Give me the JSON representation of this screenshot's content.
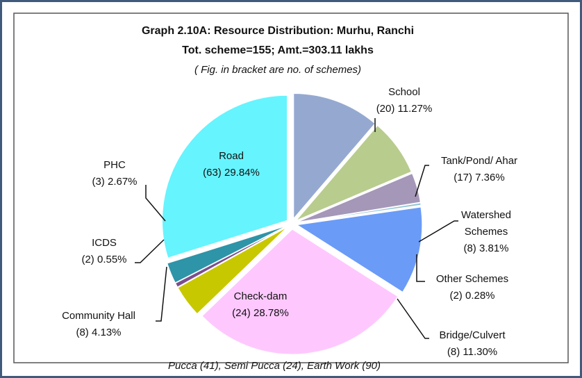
{
  "chart_data": {
    "type": "pie",
    "title": "Graph 2.10A: Resource Distribution: Murhu, Ranchi",
    "subtitle": "Tot. scheme=155; Amt.=303.11 lakhs",
    "note": "( Fig. in bracket are no. of schemes)",
    "footnote": "Pucca (41), Semi Pucca (24), Earth Work (90)",
    "categories": [
      "School",
      "Tank/Pond/ Ahar",
      "Watershed Schemes",
      "Other Schemes",
      "Bridge/Culvert",
      "Check-dam",
      "Community Hall",
      "ICDS",
      "PHC",
      "Road"
    ],
    "values": [
      11.27,
      7.36,
      3.81,
      0.28,
      11.3,
      28.78,
      4.13,
      0.55,
      2.67,
      29.84
    ],
    "value_labels": [
      "11.27%",
      "7.36%",
      "3.81%",
      "0.28%",
      "11.30%",
      "28.78%",
      "4.13%",
      "0.55%",
      "2.67%",
      "29.84%"
    ],
    "scheme_labels": [
      "(20)",
      "(17)",
      "(8)",
      "(2)",
      "(8)",
      "(24)",
      "(8)",
      "(2)",
      "(3)",
      "(63)"
    ],
    "colors": [
      "#95a9d0",
      "#b8cc8e",
      "#a597b8",
      "#8fc6d4",
      "#6a9bf7",
      "#fec8fe",
      "#c8c800",
      "#7a4f8e",
      "#2e94a8",
      "#66f4fe"
    ]
  }
}
